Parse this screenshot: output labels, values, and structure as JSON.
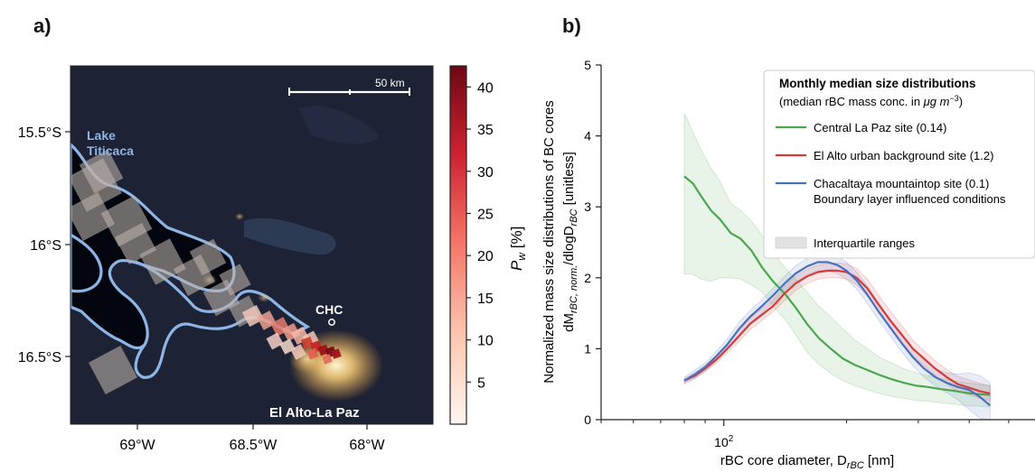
{
  "panel_a": {
    "label": "a)",
    "lake_label_lines": [
      "Lake",
      "Titicaca"
    ],
    "city_label": "El Alto-La Paz",
    "site_label": "CHC",
    "scale_bar_label": "50 km",
    "lat_ticks": [
      "15.5°S",
      "16°S",
      "16.5°S"
    ],
    "lon_ticks": [
      "69°W",
      "68.5°W",
      "68°W"
    ],
    "colorbar_label_main": "P",
    "colorbar_label_sub": "w",
    "colorbar_label_unit": " [%]",
    "colorbar_ticks": [
      5,
      10,
      15,
      20,
      25,
      30,
      35,
      40
    ],
    "colorbar_range": [
      0,
      42.5
    ],
    "colors": {
      "lake_outline": "#8db5e6",
      "lake_water": "#03060f",
      "land": "#1d2234",
      "plume_max": "#7b0a14",
      "lights": "#ffd27a"
    }
  },
  "panel_b": {
    "label": "b)",
    "chart_data": {
      "type": "line",
      "x_scale": "log",
      "xlim": [
        50,
        580
      ],
      "ylim": [
        0,
        5
      ],
      "x_tick_labels": [
        {
          "value": 100,
          "label": "10",
          "exp": "2"
        }
      ],
      "y_ticks": [
        0,
        1,
        2,
        3,
        4,
        5
      ],
      "xlabel": "rBC core diameter, D",
      "xlabel_sub": "rBC",
      "xlabel_unit": " [nm]",
      "ylabel_line1": "Normalized mass size distributions of BC cores",
      "ylabel_line2_parts": [
        "dM",
        "rBC, norm.",
        "/dlogD",
        "rBC",
        " [unitless]"
      ],
      "legend": {
        "title": "Monthly median size distributions",
        "subtitle_parts": [
          "(median rBC mass conc. in ",
          "μg m",
          "−3",
          ")"
        ],
        "placement": "top-right"
      },
      "series": [
        {
          "name": "Central La Paz site (0.14)",
          "color": "#4aa74f",
          "x": [
            80,
            84,
            88,
            93,
            98,
            104,
            110,
            117,
            124,
            132,
            141,
            150,
            160,
            171,
            183,
            196,
            210,
            225,
            241,
            258,
            276,
            296,
            317,
            340,
            364,
            390,
            420,
            450
          ],
          "y": [
            3.43,
            3.33,
            3.15,
            2.95,
            2.82,
            2.63,
            2.55,
            2.38,
            2.15,
            1.95,
            1.78,
            1.58,
            1.35,
            1.15,
            1.0,
            0.86,
            0.77,
            0.7,
            0.63,
            0.57,
            0.52,
            0.48,
            0.46,
            0.43,
            0.41,
            0.38,
            0.36,
            0.35
          ],
          "q_low": [
            2.05,
            2.05,
            1.98,
            1.95,
            2.0,
            2.0,
            1.98,
            1.9,
            1.8,
            1.6,
            1.42,
            1.2,
            0.95,
            0.78,
            0.65,
            0.55,
            0.48,
            0.42,
            0.37,
            0.33,
            0.3,
            0.27,
            0.26,
            0.24,
            0.22,
            0.2,
            0.19,
            0.18
          ],
          "q_high": [
            4.32,
            4.05,
            3.8,
            3.55,
            3.35,
            3.05,
            2.95,
            2.8,
            2.6,
            2.35,
            2.15,
            1.98,
            1.8,
            1.6,
            1.45,
            1.28,
            1.12,
            1.0,
            0.88,
            0.8,
            0.72,
            0.66,
            0.62,
            0.58,
            0.55,
            0.52,
            0.5,
            0.48
          ]
        },
        {
          "name": "El Alto urban background site (1.2)",
          "color": "#d63b3b",
          "x": [
            80,
            85,
            90,
            96,
            102,
            109,
            116,
            124,
            132,
            141,
            150,
            160,
            170,
            180,
            190,
            200,
            212,
            225,
            240,
            256,
            273,
            291,
            310,
            330,
            352,
            375,
            400,
            425,
            450
          ],
          "y": [
            0.55,
            0.62,
            0.72,
            0.85,
            1.0,
            1.18,
            1.35,
            1.48,
            1.6,
            1.78,
            1.92,
            2.02,
            2.08,
            2.1,
            2.1,
            2.08,
            2.0,
            1.85,
            1.62,
            1.4,
            1.2,
            1.0,
            0.86,
            0.72,
            0.6,
            0.5,
            0.45,
            0.4,
            0.37
          ],
          "q_low": [
            0.52,
            0.59,
            0.68,
            0.8,
            0.94,
            1.1,
            1.27,
            1.4,
            1.52,
            1.68,
            1.82,
            1.92,
            1.98,
            2.0,
            2.0,
            1.98,
            1.9,
            1.75,
            1.52,
            1.3,
            1.1,
            0.9,
            0.76,
            0.62,
            0.5,
            0.4,
            0.35,
            0.3,
            0.27
          ],
          "q_high": [
            0.58,
            0.66,
            0.77,
            0.91,
            1.07,
            1.26,
            1.43,
            1.57,
            1.69,
            1.88,
            2.02,
            2.12,
            2.18,
            2.2,
            2.21,
            2.2,
            2.13,
            1.98,
            1.75,
            1.53,
            1.33,
            1.12,
            0.97,
            0.83,
            0.71,
            0.61,
            0.56,
            0.51,
            0.48
          ]
        },
        {
          "name": "Chacaltaya mountaintop site (0.1)\nBoundary layer influenced conditions",
          "color": "#4a6fbf",
          "x": [
            80,
            85,
            90,
            96,
            102,
            109,
            116,
            124,
            132,
            141,
            150,
            160,
            170,
            180,
            190,
            200,
            212,
            225,
            240,
            256,
            273,
            291,
            310,
            330,
            352,
            375,
            400,
            425,
            450
          ],
          "y": [
            0.55,
            0.64,
            0.74,
            0.9,
            1.06,
            1.28,
            1.45,
            1.6,
            1.75,
            1.92,
            2.06,
            2.16,
            2.22,
            2.22,
            2.18,
            2.1,
            1.96,
            1.76,
            1.52,
            1.3,
            1.08,
            0.88,
            0.72,
            0.6,
            0.52,
            0.46,
            0.42,
            0.32,
            0.2
          ],
          "q_low": [
            0.5,
            0.58,
            0.68,
            0.83,
            0.98,
            1.19,
            1.36,
            1.51,
            1.65,
            1.82,
            1.95,
            2.05,
            2.1,
            2.1,
            2.06,
            1.98,
            1.84,
            1.64,
            1.4,
            1.18,
            0.96,
            0.76,
            0.6,
            0.48,
            0.38,
            0.28,
            0.14,
            0.02,
            0.0
          ],
          "q_high": [
            0.6,
            0.7,
            0.8,
            0.97,
            1.14,
            1.37,
            1.54,
            1.69,
            1.85,
            2.02,
            2.17,
            2.27,
            2.34,
            2.34,
            2.3,
            2.22,
            2.08,
            1.88,
            1.64,
            1.42,
            1.2,
            1.0,
            0.84,
            0.72,
            0.66,
            0.64,
            0.66,
            0.62,
            0.52
          ]
        }
      ],
      "interquartile_legend": {
        "label": "Interquartile ranges",
        "color": "#d4d4d4"
      }
    }
  }
}
